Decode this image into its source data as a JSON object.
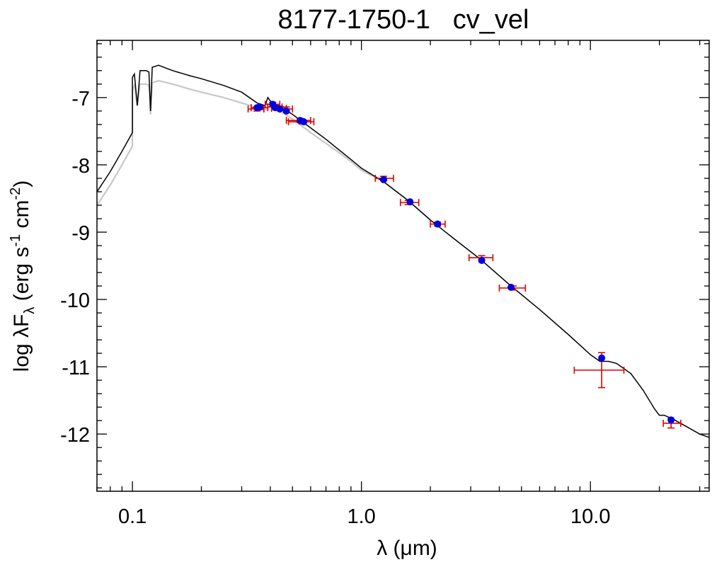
{
  "chart_data": {
    "type": "scatter",
    "title": "8177-1750-1   cv_vel",
    "xlabel": "λ (μm)",
    "ylabel": {
      "prefix": "log λF",
      "sub": "λ",
      "units_open": " (erg s",
      "sup1": "-1",
      "units_mid": " cm",
      "sup2": "-2",
      "units_close": ")"
    },
    "x_scale": "log",
    "xlim": [
      0.07,
      33
    ],
    "ylim": [
      -12.85,
      -6.15
    ],
    "x_ticks": [
      {
        "value": 0.1,
        "label": "0.1"
      },
      {
        "value": 1.0,
        "label": "1.0"
      },
      {
        "value": 10.0,
        "label": "10.0"
      }
    ],
    "y_ticks": [
      {
        "value": -7,
        "label": "-7"
      },
      {
        "value": -8,
        "label": "-8"
      },
      {
        "value": -9,
        "label": "-9"
      },
      {
        "value": -10,
        "label": "-10"
      },
      {
        "value": -11,
        "label": "-11"
      },
      {
        "value": -12,
        "label": "-12"
      }
    ],
    "series": [
      {
        "name": "Model SED (black)",
        "kind": "line",
        "color": "#000000",
        "points": [
          [
            0.07,
            -8.4
          ],
          [
            0.08,
            -8.1
          ],
          [
            0.09,
            -7.8
          ],
          [
            0.1,
            -7.52
          ],
          [
            0.1,
            -6.7
          ],
          [
            0.102,
            -6.65
          ],
          [
            0.105,
            -7.12
          ],
          [
            0.108,
            -6.6
          ],
          [
            0.115,
            -6.6
          ],
          [
            0.118,
            -6.62
          ],
          [
            0.12,
            -7.2
          ],
          [
            0.122,
            -6.55
          ],
          [
            0.13,
            -6.52
          ],
          [
            0.15,
            -6.6
          ],
          [
            0.18,
            -6.68
          ],
          [
            0.2,
            -6.72
          ],
          [
            0.25,
            -6.82
          ],
          [
            0.3,
            -6.92
          ],
          [
            0.35,
            -7.08
          ],
          [
            0.38,
            -7.12
          ],
          [
            0.39,
            -7.0
          ],
          [
            0.4,
            -7.05
          ],
          [
            0.45,
            -7.15
          ],
          [
            0.5,
            -7.25
          ],
          [
            0.6,
            -7.45
          ],
          [
            0.7,
            -7.62
          ],
          [
            0.8,
            -7.78
          ],
          [
            0.9,
            -7.92
          ],
          [
            1.0,
            -8.05
          ],
          [
            1.25,
            -8.25
          ],
          [
            1.6,
            -8.53
          ],
          [
            2.0,
            -8.82
          ],
          [
            2.5,
            -9.08
          ],
          [
            3.3,
            -9.4
          ],
          [
            4.5,
            -9.8
          ],
          [
            6.0,
            -10.15
          ],
          [
            8.0,
            -10.52
          ],
          [
            10.0,
            -10.82
          ],
          [
            11.0,
            -10.92
          ],
          [
            12.0,
            -10.92
          ],
          [
            13.0,
            -10.95
          ],
          [
            15.0,
            -11.1
          ],
          [
            17.0,
            -11.35
          ],
          [
            19.0,
            -11.62
          ],
          [
            20.0,
            -11.72
          ],
          [
            21.0,
            -11.72
          ],
          [
            23.0,
            -11.78
          ],
          [
            26.0,
            -11.88
          ],
          [
            30.0,
            -12.0
          ],
          [
            33.0,
            -12.05
          ]
        ]
      },
      {
        "name": "Model SED (gray)",
        "kind": "line",
        "color": "#c8c8c8",
        "points": [
          [
            0.07,
            -8.6
          ],
          [
            0.08,
            -8.3
          ],
          [
            0.09,
            -8.0
          ],
          [
            0.1,
            -7.72
          ],
          [
            0.1,
            -6.88
          ],
          [
            0.102,
            -6.82
          ],
          [
            0.105,
            -7.12
          ],
          [
            0.108,
            -6.8
          ],
          [
            0.115,
            -6.8
          ],
          [
            0.118,
            -6.82
          ],
          [
            0.12,
            -7.25
          ],
          [
            0.122,
            -6.78
          ],
          [
            0.13,
            -6.75
          ],
          [
            0.15,
            -6.8
          ],
          [
            0.18,
            -6.88
          ],
          [
            0.2,
            -6.92
          ],
          [
            0.25,
            -7.0
          ],
          [
            0.3,
            -7.08
          ],
          [
            0.35,
            -7.15
          ],
          [
            0.38,
            -7.18
          ],
          [
            0.4,
            -7.12
          ],
          [
            0.45,
            -7.22
          ],
          [
            0.5,
            -7.32
          ],
          [
            0.6,
            -7.52
          ],
          [
            0.7,
            -7.68
          ],
          [
            0.8,
            -7.82
          ],
          [
            0.9,
            -7.95
          ],
          [
            1.0,
            -8.08
          ],
          [
            1.25,
            -8.25
          ],
          [
            1.6,
            -8.53
          ],
          [
            2.0,
            -8.82
          ]
        ]
      },
      {
        "name": "Observed photometry",
        "kind": "errorbar",
        "color": "#dd0000",
        "points": [
          {
            "x": 0.35,
            "y": -7.17,
            "xerr": [
              0.32,
              0.375
            ],
            "yerr": 0.03
          },
          {
            "x": 0.36,
            "y": -7.15,
            "xerr": [
              0.33,
              0.39
            ],
            "yerr": 0.03
          },
          {
            "x": 0.41,
            "y": -7.1,
            "xerr": [
              0.38,
              0.44
            ],
            "yerr": 0.03
          },
          {
            "x": 0.42,
            "y": -7.14,
            "xerr": [
              0.39,
              0.45
            ],
            "yerr": 0.03
          },
          {
            "x": 0.44,
            "y": -7.16,
            "xerr": [
              0.405,
              0.47
            ],
            "yerr": 0.03
          },
          {
            "x": 0.47,
            "y": -7.17,
            "xerr": [
              0.44,
              0.5
            ],
            "yerr": 0.03
          },
          {
            "x": 0.54,
            "y": -7.34,
            "xerr": [
              0.47,
              0.6
            ],
            "yerr": 0.03
          },
          {
            "x": 0.55,
            "y": -7.36,
            "xerr": [
              0.48,
              0.62
            ],
            "yerr": 0.03
          },
          {
            "x": 1.25,
            "y": -8.2,
            "xerr": [
              1.15,
              1.38
            ],
            "yerr": 0.03
          },
          {
            "x": 1.6,
            "y": -8.56,
            "xerr": [
              1.48,
              1.78
            ],
            "yerr": 0.03
          },
          {
            "x": 2.15,
            "y": -8.88,
            "xerr": [
              2.0,
              2.32
            ],
            "yerr": 0.03
          },
          {
            "x": 3.35,
            "y": -9.38,
            "xerr": [
              2.95,
              3.75
            ],
            "yerr": 0.03
          },
          {
            "x": 4.6,
            "y": -9.83,
            "xerr": [
              4.0,
              5.2
            ],
            "yerr": 0.03
          },
          {
            "x": 11.2,
            "y": -11.05,
            "xerr": [
              8.5,
              14.0
            ],
            "yerr": 0.26
          },
          {
            "x": 22.5,
            "y": -11.84,
            "xerr": [
              20.8,
              24.8
            ],
            "yerr": 0.07
          }
        ]
      },
      {
        "name": "Model photometry",
        "kind": "scatter",
        "color": "#0000dd",
        "points": [
          [
            0.35,
            -7.15
          ],
          [
            0.36,
            -7.14
          ],
          [
            0.41,
            -7.1
          ],
          [
            0.42,
            -7.15
          ],
          [
            0.44,
            -7.17
          ],
          [
            0.47,
            -7.2
          ],
          [
            0.54,
            -7.34
          ],
          [
            0.56,
            -7.36
          ],
          [
            1.25,
            -8.22
          ],
          [
            1.63,
            -8.55
          ],
          [
            2.15,
            -8.88
          ],
          [
            3.35,
            -9.42
          ],
          [
            4.5,
            -9.82
          ],
          [
            11.2,
            -10.87
          ],
          [
            22.5,
            -11.79
          ]
        ]
      }
    ]
  }
}
